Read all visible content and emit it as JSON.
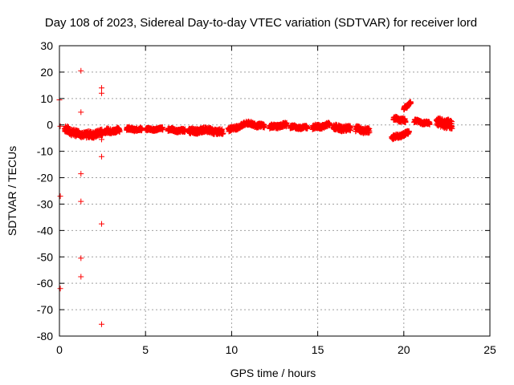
{
  "chart_data": {
    "type": "scatter",
    "title": "Day 108 of 2023, Sidereal Day-to-day VTEC variation (SDTVAR) for receiver lord",
    "xlabel": "GPS time / hours",
    "ylabel": "SDTVAR / TECUs",
    "xlim": [
      0,
      25
    ],
    "ylim": [
      -80,
      30
    ],
    "xticks": [
      0,
      5,
      10,
      15,
      20,
      25
    ],
    "yticks": [
      -80,
      -70,
      -60,
      -50,
      -40,
      -30,
      -20,
      -10,
      0,
      10,
      20,
      30
    ],
    "grid": true,
    "marker": "+",
    "color": "#ff0000",
    "outliers": [
      [
        0.0,
        9.5
      ],
      [
        0.05,
        -0.5
      ],
      [
        0.05,
        -27
      ],
      [
        0.05,
        -62
      ],
      [
        1.25,
        20.5
      ],
      [
        1.25,
        4.8
      ],
      [
        1.25,
        -18.5
      ],
      [
        1.25,
        -29
      ],
      [
        1.25,
        -50.5
      ],
      [
        1.25,
        -57.5
      ],
      [
        2.45,
        14
      ],
      [
        2.45,
        12
      ],
      [
        2.45,
        -5.5
      ],
      [
        2.45,
        -12
      ],
      [
        2.45,
        -37.5
      ],
      [
        2.45,
        -75.5
      ]
    ],
    "segments": [
      {
        "x0": 0.3,
        "x1": 1.0,
        "y0": -1.5,
        "y1": -3.5,
        "spread": 2.5
      },
      {
        "x0": 1.0,
        "x1": 1.5,
        "y0": -3.0,
        "y1": -4.0,
        "spread": 2.0
      },
      {
        "x0": 1.5,
        "x1": 2.5,
        "y0": -4.0,
        "y1": -3.0,
        "spread": 2.5
      },
      {
        "x0": 2.6,
        "x1": 3.5,
        "y0": -2.5,
        "y1": -2.0,
        "spread": 1.8
      },
      {
        "x0": 3.9,
        "x1": 4.8,
        "y0": -1.5,
        "y1": -1.8,
        "spread": 1.2
      },
      {
        "x0": 5.0,
        "x1": 6.0,
        "y0": -1.8,
        "y1": -1.5,
        "spread": 1.0
      },
      {
        "x0": 6.3,
        "x1": 7.3,
        "y0": -1.8,
        "y1": -2.3,
        "spread": 1.2
      },
      {
        "x0": 7.5,
        "x1": 8.5,
        "y0": -2.5,
        "y1": -2.0,
        "spread": 2.0
      },
      {
        "x0": 8.5,
        "x1": 9.5,
        "y0": -2.0,
        "y1": -2.8,
        "spread": 2.0
      },
      {
        "x0": 9.8,
        "x1": 10.9,
        "y0": -2.0,
        "y1": 0.5,
        "spread": 1.5
      },
      {
        "x0": 10.9,
        "x1": 11.9,
        "y0": 0.5,
        "y1": -0.5,
        "spread": 1.5
      },
      {
        "x0": 12.2,
        "x1": 13.2,
        "y0": -0.8,
        "y1": 0.0,
        "spread": 1.5
      },
      {
        "x0": 13.4,
        "x1": 14.4,
        "y0": -0.8,
        "y1": -1.0,
        "spread": 1.2
      },
      {
        "x0": 14.7,
        "x1": 15.7,
        "y0": -1.0,
        "y1": 0.0,
        "spread": 1.5
      },
      {
        "x0": 15.9,
        "x1": 16.9,
        "y0": -1.0,
        "y1": -1.5,
        "spread": 2.0
      },
      {
        "x0": 17.2,
        "x1": 18.0,
        "y0": -1.5,
        "y1": -2.5,
        "spread": 2.0
      },
      {
        "x0": 19.3,
        "x1": 20.3,
        "y0": -5.0,
        "y1": -3.0,
        "spread": 1.5
      },
      {
        "x0": 19.4,
        "x1": 20.1,
        "y0": 2.5,
        "y1": 1.5,
        "spread": 1.5
      },
      {
        "x0": 20.0,
        "x1": 20.4,
        "y0": 6.0,
        "y1": 8.5,
        "spread": 1.0
      },
      {
        "x0": 20.6,
        "x1": 21.5,
        "y0": 1.5,
        "y1": 0.5,
        "spread": 1.2
      },
      {
        "x0": 21.9,
        "x1": 22.8,
        "y0": 1.0,
        "y1": 0.0,
        "spread": 3.5
      }
    ]
  }
}
